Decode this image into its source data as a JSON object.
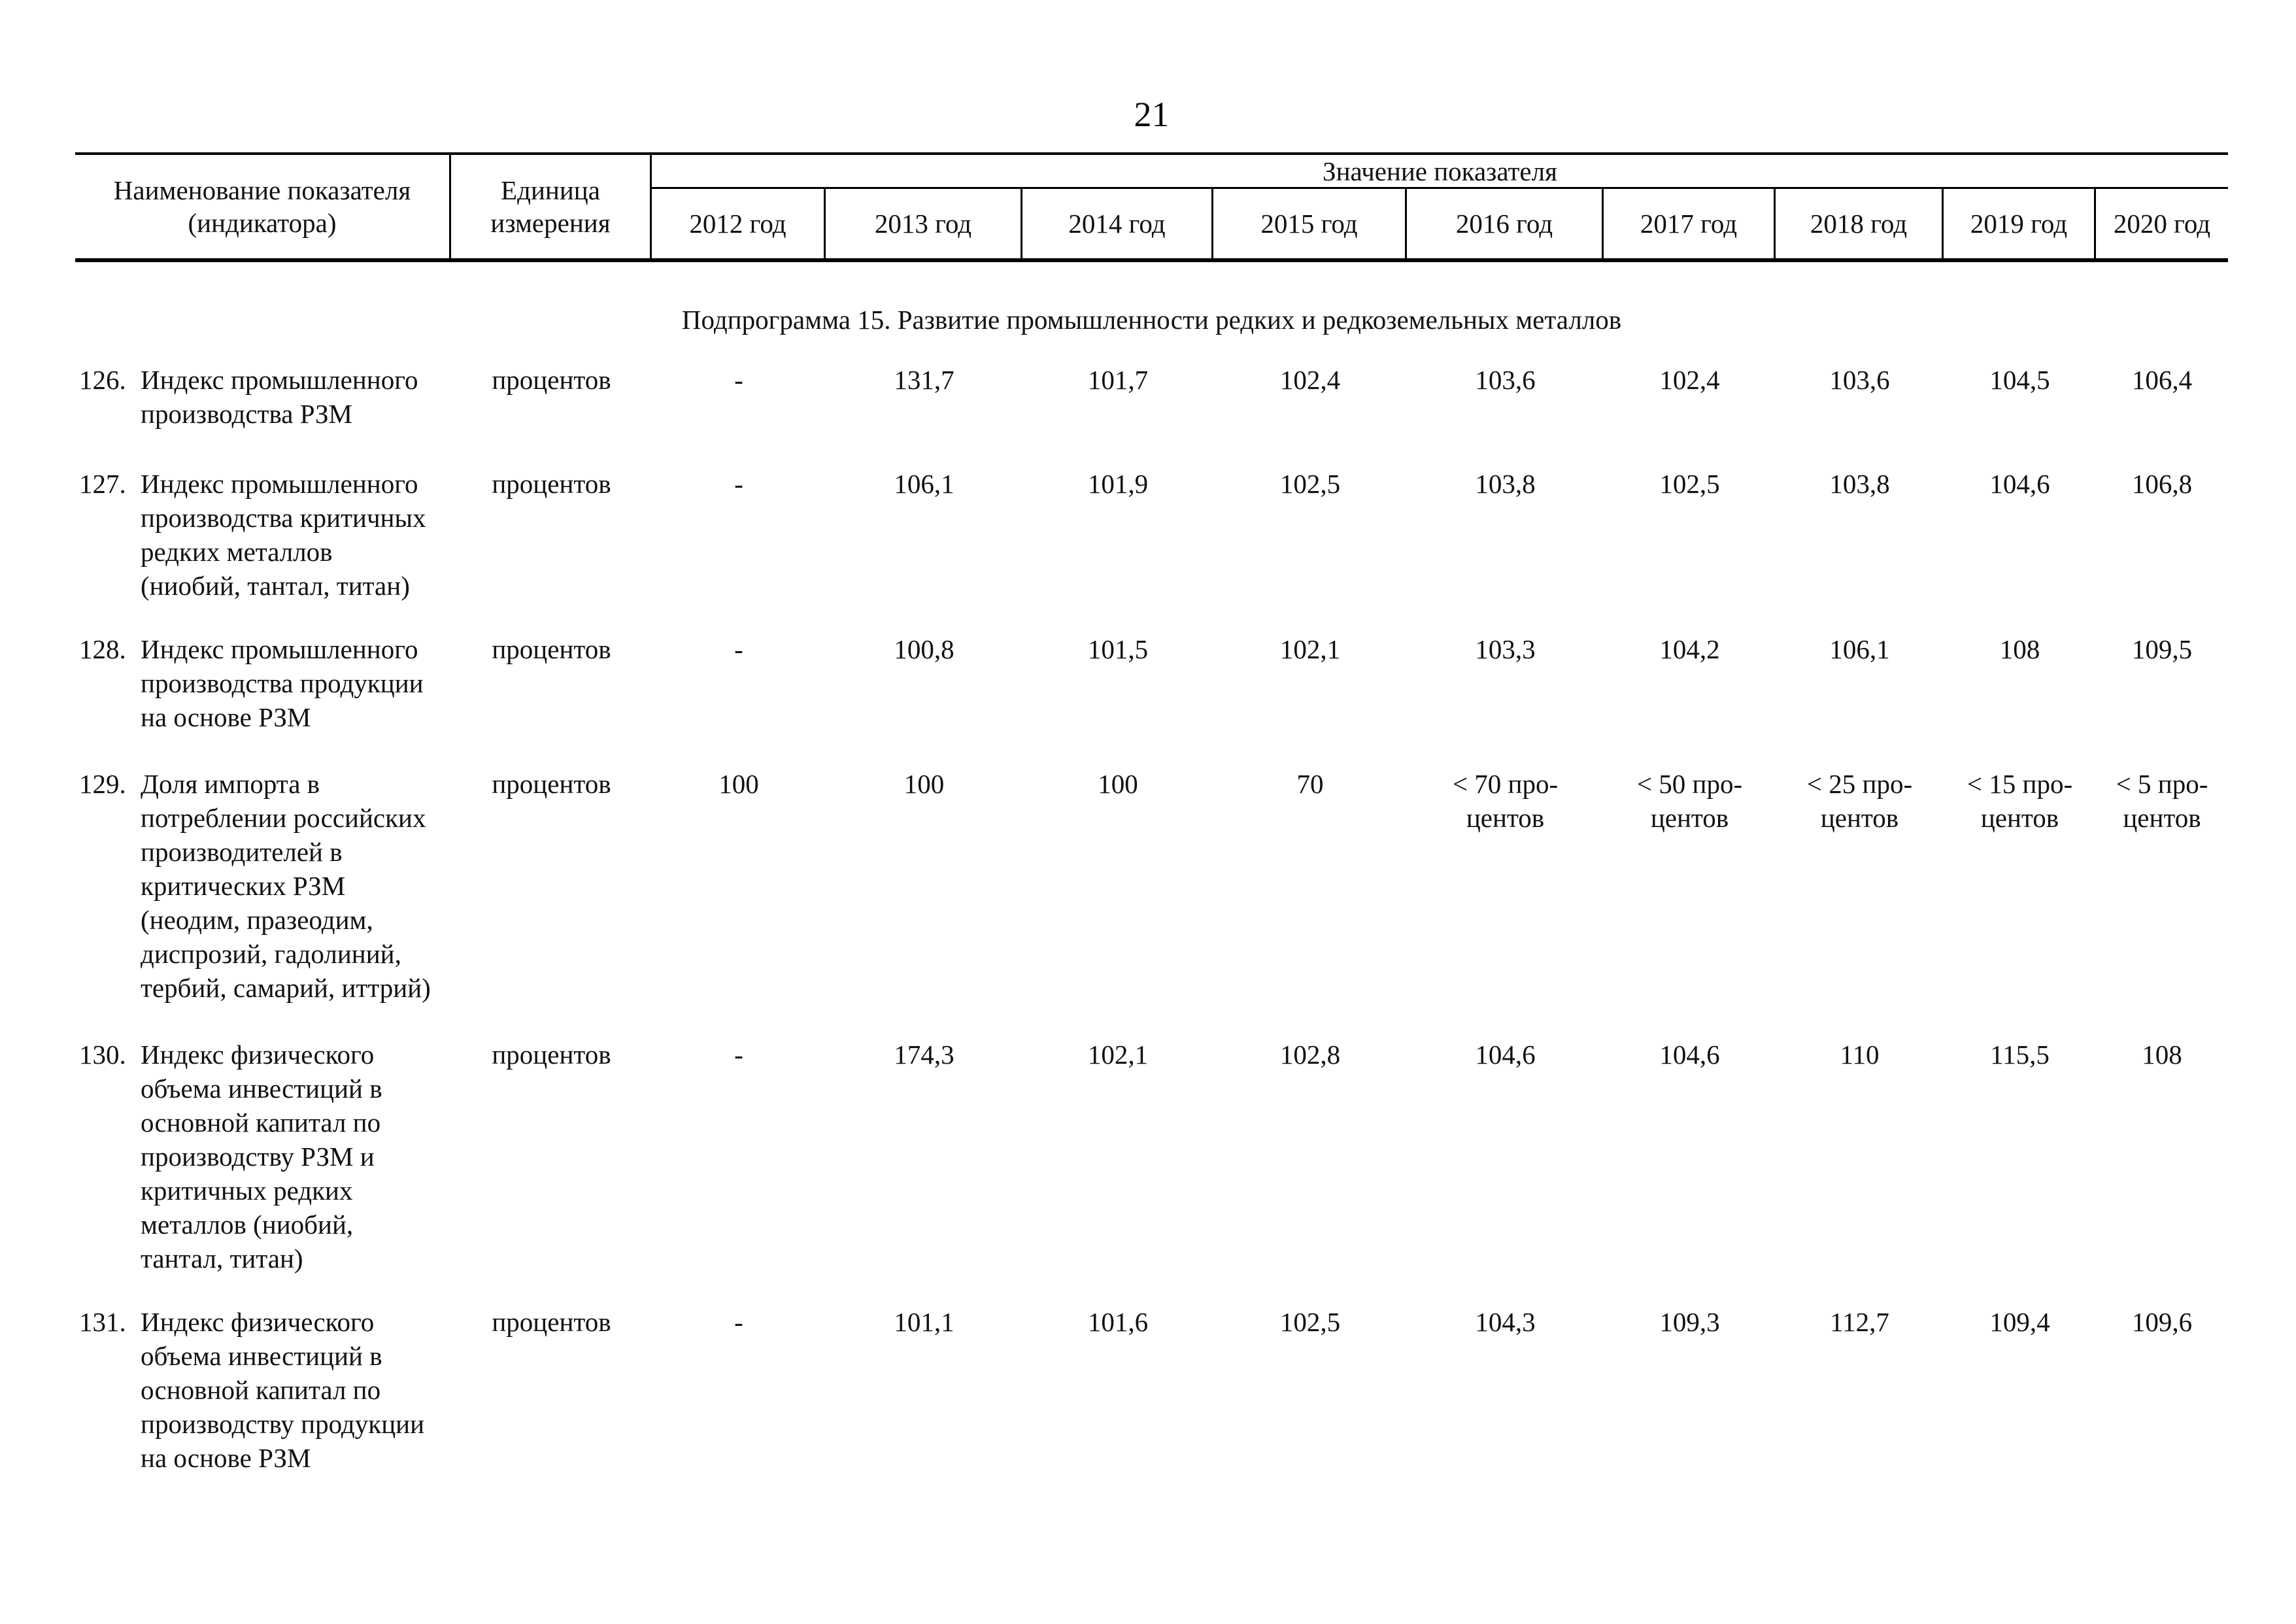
{
  "page": {
    "number": "21"
  },
  "table": {
    "header": {
      "name_col": "Наименование показателя\n(индикатора)",
      "unit_col": "Единица\nизмерения",
      "value_group": "Значение показателя",
      "years": [
        "2012 год",
        "2013 год",
        "2014 год",
        "2015 год",
        "2016 год",
        "2017 год",
        "2018 год",
        "2019 год",
        "2020 год"
      ]
    },
    "subtitle": "Подпрограмма 15. Развитие промышленности редких и редкоземельных металлов",
    "rows": [
      {
        "num": "126.",
        "name": "Индекс промышленного\nпроизводства РЗМ",
        "unit": "процентов",
        "values": [
          "-",
          "131,7",
          "101,7",
          "102,4",
          "103,6",
          "102,4",
          "103,6",
          "104,5",
          "106,4"
        ]
      },
      {
        "num": "127.",
        "name": "Индекс промышленного\nпроизводства критичных\nредких металлов\n(ниобий, тантал, титан)",
        "unit": "процентов",
        "values": [
          "-",
          "106,1",
          "101,9",
          "102,5",
          "103,8",
          "102,5",
          "103,8",
          "104,6",
          "106,8"
        ]
      },
      {
        "num": "128.",
        "name": "Индекс промышленного\nпроизводства продукции\nна основе РЗМ",
        "unit": "процентов",
        "values": [
          "-",
          "100,8",
          "101,5",
          "102,1",
          "103,3",
          "104,2",
          "106,1",
          "108",
          "109,5"
        ]
      },
      {
        "num": "129.",
        "name": "Доля импорта в\nпотреблении российских\nпроизводителей в\nкритических РЗМ\n(неодим, празеодим,\nдиспрозий, гадолиний,\nтербий, самарий, иттрий)",
        "unit": "процентов",
        "values": [
          "100",
          "100",
          "100",
          "70",
          "< 70 про-\nцентов",
          "< 50 про-\nцентов",
          "< 25 про-\nцентов",
          "< 15 про-\nцентов",
          "< 5 про-\nцентов"
        ]
      },
      {
        "num": "130.",
        "name": "Индекс физического\nобъема инвестиций в\nосновной капитал по\nпроизводству РЗМ и\nкритичных редких\nметаллов (ниобий,\nтантал, титан)",
        "unit": "процентов",
        "values": [
          "-",
          "174,3",
          "102,1",
          "102,8",
          "104,6",
          "104,6",
          "110",
          "115,5",
          "108"
        ]
      },
      {
        "num": "131.",
        "name": "Индекс физического\nобъема инвестиций в\nосновной капитал по\nпроизводству продукции\nна основе РЗМ",
        "unit": "процентов",
        "values": [
          "-",
          "101,1",
          "101,6",
          "102,5",
          "104,3",
          "109,3",
          "112,7",
          "109,4",
          "109,6"
        ]
      }
    ]
  }
}
